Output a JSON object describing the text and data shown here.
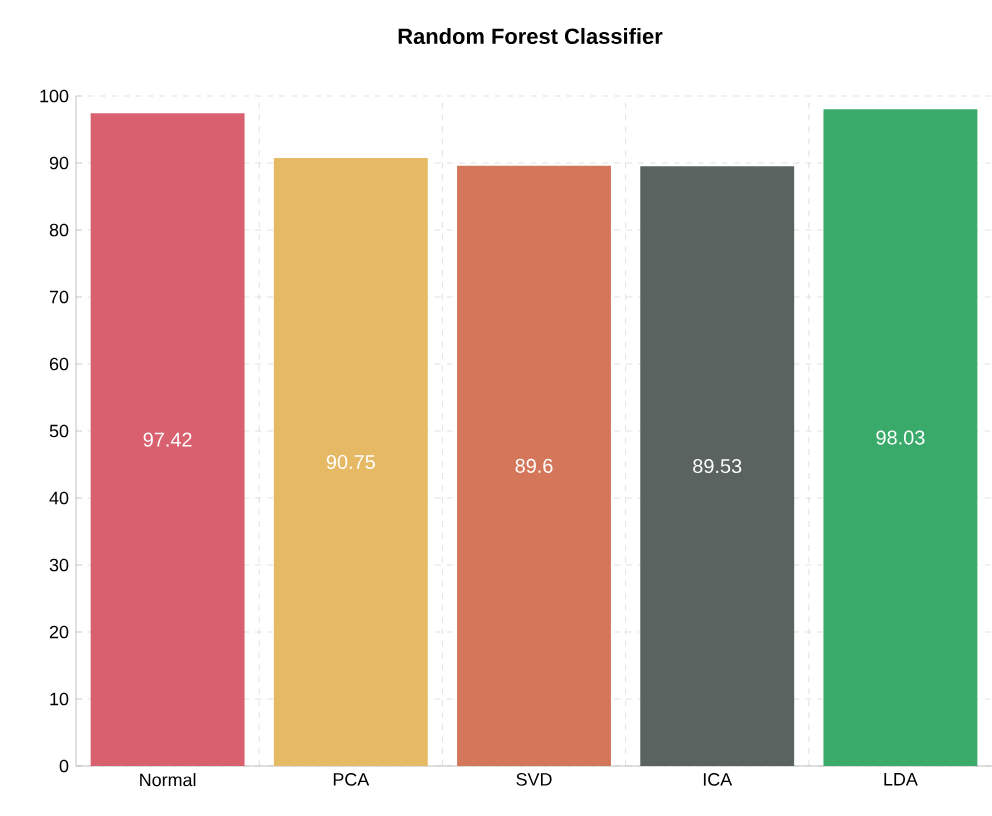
{
  "chart_data": {
    "type": "bar",
    "title": "Random Forest Classifier",
    "categories": [
      "Normal",
      "PCA",
      "SVD",
      "ICA",
      "LDA"
    ],
    "values": [
      97.42,
      90.75,
      89.6,
      89.53,
      98.03
    ],
    "colors": [
      "#d9606f",
      "#e6b964",
      "#d4765a",
      "#5b6360",
      "#3aaa6a"
    ],
    "ylim": [
      0,
      100
    ],
    "yticks": [
      0,
      10,
      20,
      30,
      40,
      50,
      60,
      70,
      80,
      90,
      100
    ],
    "grid": true,
    "data_labels": true
  }
}
